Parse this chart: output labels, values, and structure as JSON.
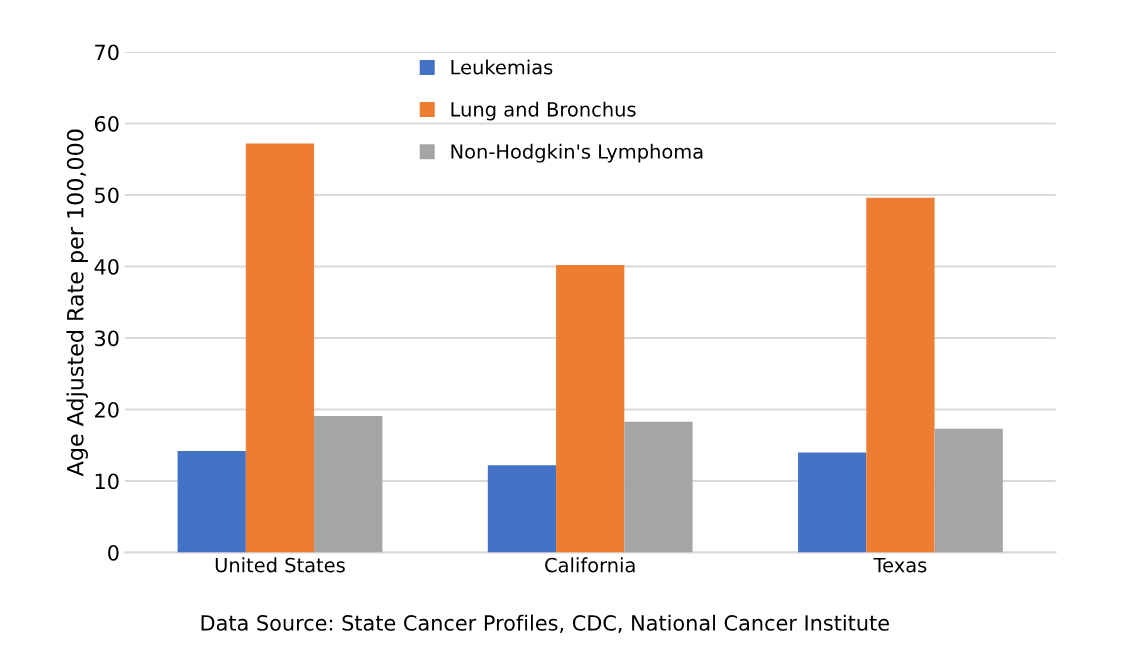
{
  "chart_data": {
    "type": "bar",
    "ylabel": "Age Adjusted Rate per 100,000",
    "categories": [
      "United States",
      "California",
      "Texas"
    ],
    "series": [
      {
        "name": "Leukemias",
        "color": "#4472c4",
        "values": [
          14.2,
          12.2,
          14.0
        ]
      },
      {
        "name": "Lung and Bronchus",
        "color": "#ed7d31",
        "values": [
          57.2,
          40.2,
          49.6
        ]
      },
      {
        "name": "Non-Hodgkin's Lymphoma",
        "color": "#a5a5a5",
        "values": [
          19.1,
          18.3,
          17.3
        ]
      }
    ],
    "ylim": [
      0,
      70
    ],
    "yticks": [
      0,
      10,
      20,
      30,
      40,
      50,
      60,
      70
    ],
    "grid": "y",
    "legend": "top",
    "annotations": [
      "Data Source: State Cancer Profiles, CDC, National Cancer Institute"
    ]
  }
}
